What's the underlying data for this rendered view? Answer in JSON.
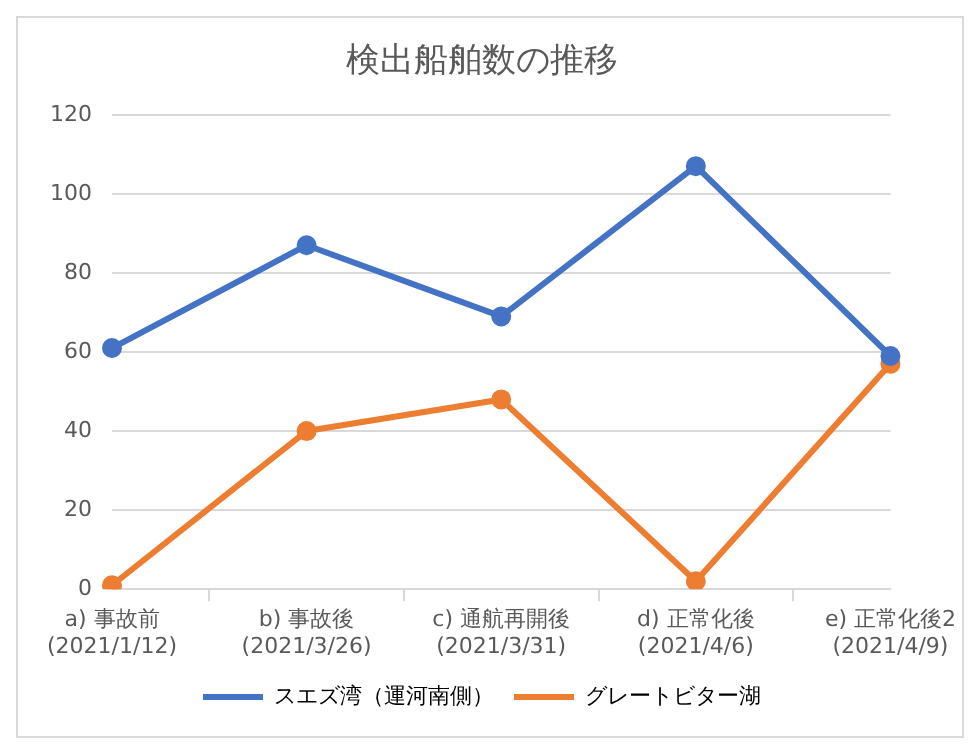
{
  "chart_data": {
    "type": "line",
    "title": "検出船舶数の推移",
    "categories": [
      "a) 事故前\n(2021/1/12)",
      "b) 事故後\n(2021/3/26)",
      "c) 通航再開後\n(2021/3/31)",
      "d) 正常化後\n(2021/4/6)",
      "e) 正常化後2\n(2021/4/9)"
    ],
    "series": [
      {
        "name": "スエズ湾（運河南側）",
        "color": "#4472c4",
        "values": [
          61,
          87,
          69,
          107,
          59
        ]
      },
      {
        "name": "グレートビター湖",
        "color": "#ed7d31",
        "values": [
          1,
          40,
          48,
          2,
          57
        ]
      }
    ],
    "ylim": [
      0,
      120
    ],
    "yticks": [
      0,
      20,
      40,
      60,
      80,
      100,
      120
    ],
    "grid": "y",
    "legend": "bottom",
    "marker": "circle",
    "line_style": "solid"
  }
}
